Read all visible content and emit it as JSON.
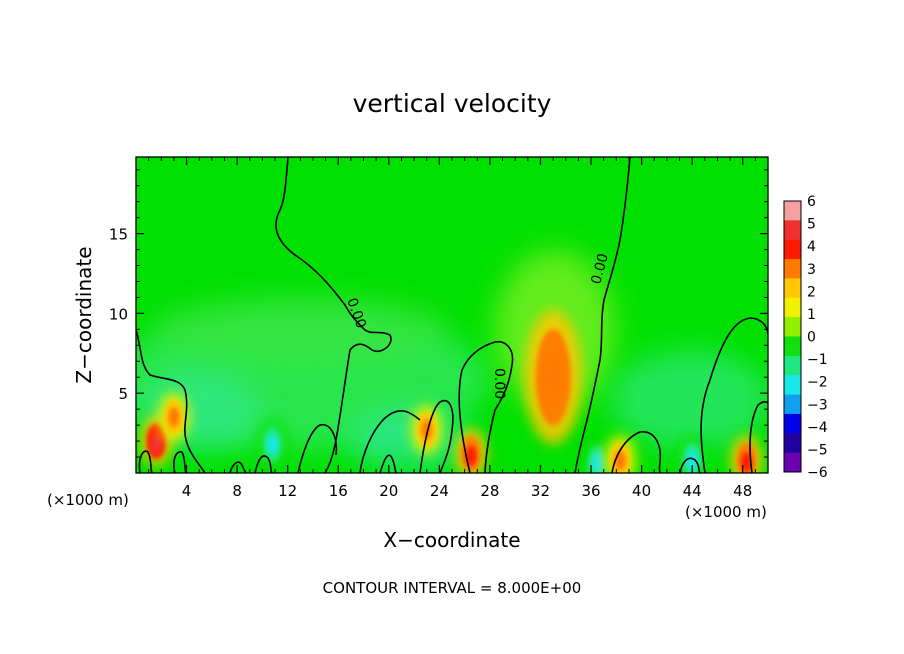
{
  "chart_data": {
    "type": "heatmap",
    "title": "vertical velocity",
    "xlabel": "X−coordinate",
    "ylabel": "Z−coordinate",
    "x_unit_label": "(×1000 m)",
    "x_unit_label_right": "(×1000 m)",
    "footer": "CONTOUR INTERVAL = 8.000E+00",
    "xlim": [
      0,
      50
    ],
    "ylim": [
      0,
      19.8
    ],
    "x_ticks": [
      4,
      8,
      12,
      16,
      20,
      24,
      28,
      32,
      36,
      40,
      44,
      48
    ],
    "y_ticks": [
      5,
      10,
      15
    ],
    "contour_label": "0.00",
    "colorbar": {
      "labels": [
        "6",
        "5",
        "4",
        "3",
        "2",
        "1",
        "0",
        "−1",
        "−2",
        "−3",
        "−4",
        "−5",
        "−6"
      ],
      "colors": [
        "#f4a0a0",
        "#f03030",
        "#ff1a00",
        "#ff7a00",
        "#ffc800",
        "#f0f000",
        "#90f000",
        "#10e010",
        "#20e880",
        "#18e8e8",
        "#10a0f0",
        "#0000e8",
        "#2000a0",
        "#6a00b0"
      ]
    },
    "background_color": "#00e000",
    "features": [
      {
        "x": 1.6,
        "z": 2.0,
        "value": 5
      },
      {
        "x": 3.0,
        "z": 3.5,
        "value": 3
      },
      {
        "x": 10.8,
        "z": 1.8,
        "value": -2.5
      },
      {
        "x": 23.0,
        "z": 2.7,
        "value": 3
      },
      {
        "x": 26.5,
        "z": 1.2,
        "value": 4.5
      },
      {
        "x": 33.0,
        "z": 6.0,
        "value": 3.5
      },
      {
        "x": 36.5,
        "z": 0.6,
        "value": -3
      },
      {
        "x": 38.3,
        "z": 0.8,
        "value": 3
      },
      {
        "x": 44.0,
        "z": 0.8,
        "value": -3
      },
      {
        "x": 48.3,
        "z": 0.8,
        "value": 4
      }
    ]
  }
}
